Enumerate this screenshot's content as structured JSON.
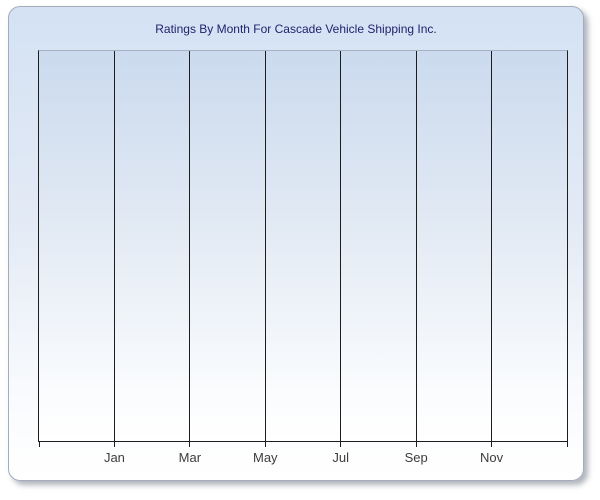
{
  "window": {
    "background": "#ffffff"
  },
  "chart_data": {
    "type": "line",
    "title": "Ratings By Month For Cascade Vehicle Shipping Inc.",
    "categories": [
      "Jan",
      "Mar",
      "May",
      "Jul",
      "Sep",
      "Nov"
    ],
    "series": [],
    "xlabel": "",
    "ylabel": "",
    "grid": "vertical",
    "legend": "none",
    "plot_is_empty": true,
    "x_axis": {
      "total_vertical_lines": 8,
      "labeled_line_indexes": [
        1,
        2,
        3,
        4,
        5,
        6
      ],
      "ticks_below_axis": true
    },
    "y_axis": {
      "labels": []
    }
  },
  "colors": {
    "title_text": "#22226d",
    "axis_line": "#1d1d1d",
    "gridline": "#1d1d1d",
    "plot_top_border": "#a7b1c3",
    "tick_label": "#3d3d3d",
    "panel_border": "#a2acbd",
    "panel_gradient_top": "#d4e2f4",
    "panel_gradient_bottom": "#ffffff",
    "plot_gradient_top": "#cbdaee",
    "plot_gradient_bottom": "#ffffff"
  }
}
